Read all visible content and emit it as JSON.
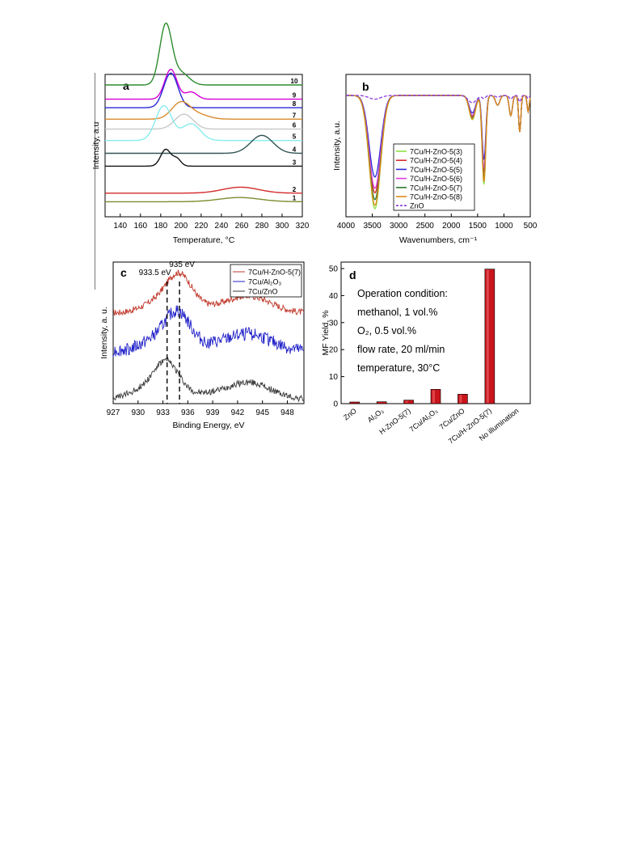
{
  "chart_data": [
    {
      "panel": "a",
      "type": "line",
      "xlabel": "Temperature, °C",
      "ylabel": "Intensity, a.u",
      "xlim": [
        125,
        320
      ],
      "xticks": [
        140,
        160,
        180,
        200,
        220,
        240,
        260,
        280,
        300,
        320
      ],
      "curve_labels": [
        "10",
        "9",
        "8",
        "7",
        "6",
        "5",
        "4",
        "3",
        "2",
        "1"
      ],
      "series": [
        {
          "name": "10",
          "color": "#2e8b2e",
          "baseline": 0.04,
          "peaks": [
            [
              185,
              6,
              1.0
            ],
            [
              200,
              8,
              0.2
            ]
          ]
        },
        {
          "name": "9",
          "color": "#d700d7",
          "baseline": 0.14,
          "peaks": [
            [
              190,
              6,
              0.5
            ],
            [
              210,
              6,
              0.12
            ]
          ]
        },
        {
          "name": "8",
          "color": "#2a2ad8",
          "baseline": 0.2,
          "peaks": [
            [
              190,
              7,
              0.58
            ]
          ]
        },
        {
          "name": "7",
          "color": "#d98a2b",
          "baseline": 0.28,
          "peaks": [
            [
              200,
              9,
              0.28
            ],
            [
              218,
              10,
              0.07
            ]
          ]
        },
        {
          "name": "6",
          "color": "#c8c8c8",
          "baseline": 0.35,
          "peaks": [
            [
              203,
              9,
              0.25
            ]
          ]
        },
        {
          "name": "5",
          "color": "#87ecef",
          "baseline": 0.43,
          "peaks": [
            [
              183,
              8,
              0.58
            ],
            [
              210,
              9,
              0.28
            ]
          ]
        },
        {
          "name": "4",
          "color": "#335555",
          "baseline": 0.52,
          "peaks": [
            [
              280,
              11,
              0.3
            ]
          ]
        },
        {
          "name": "3",
          "color": "#111111",
          "baseline": 0.61,
          "peaks": [
            [
              185,
              5,
              0.28
            ],
            [
              196,
              4,
              0.12
            ]
          ]
        },
        {
          "name": "2",
          "color": "#d42a2a",
          "baseline": 0.8,
          "peaks": [
            [
              259,
              18,
              0.1
            ]
          ]
        },
        {
          "name": "1",
          "color": "#7c8c2f",
          "baseline": 0.86,
          "peaks": [
            [
              258,
              20,
              0.07
            ]
          ]
        }
      ]
    },
    {
      "panel": "b",
      "type": "line",
      "xlabel": "Wavenumbers, cm⁻¹",
      "ylabel": "Intensity, a.u.",
      "xlim": [
        4000,
        500
      ],
      "xticks": [
        4000,
        3500,
        3000,
        2500,
        2000,
        1500,
        1000,
        500
      ],
      "series": [
        {
          "name": "7Cu/H-ZnO-5(3)",
          "color": "#8de046",
          "depth": 1.0
        },
        {
          "name": "7Cu/H-ZnO-5(4)",
          "color": "#d62b2b",
          "depth": 0.86
        },
        {
          "name": "7Cu/H-ZnO-5(5)",
          "color": "#2d2dda",
          "depth": 0.72
        },
        {
          "name": "7Cu/H-ZnO-5(6)",
          "color": "#df3ddf",
          "depth": 0.82
        },
        {
          "name": "7Cu/H-ZnO-5(7)",
          "color": "#2d7a2d",
          "depth": 0.92
        },
        {
          "name": "7Cu/H-ZnO-5(8)",
          "color": "#e08a1a",
          "depth": 0.97
        },
        {
          "name": "ZnO",
          "color": "#8a3adf",
          "depth": 0.18,
          "dashed": true
        }
      ]
    },
    {
      "panel": "c",
      "type": "line",
      "xlabel": "Binding Energy, eV",
      "ylabel": "Intensity, a. u.",
      "xlim": [
        927,
        950
      ],
      "xticks": [
        927,
        930,
        933,
        936,
        939,
        942,
        945,
        948
      ],
      "annotations": [
        "933.5 eV",
        "935 eV"
      ],
      "reference_lines": [
        933.5,
        935
      ],
      "series": [
        {
          "name": "7Cu/H-ZnO-5(7)",
          "color": "#c0392b",
          "peak": 935.0
        },
        {
          "name": "7Cu/Al₂O₃",
          "color": "#2323c9",
          "peak": 934.8
        },
        {
          "name": "7Cu/ZnO",
          "color": "#3a3a3a",
          "peak": 933.5
        }
      ]
    },
    {
      "panel": "d",
      "type": "bar",
      "ylabel": "MF Yield, %",
      "ylim": [
        0,
        50
      ],
      "yticks": [
        0,
        10,
        20,
        30,
        40,
        50
      ],
      "categories": [
        "ZnO",
        "Al₂O₃",
        "H-ZnO-5(7)",
        "7Cu/Al₂O₃",
        "7Cu/ZnO",
        "7Cu/H-ZnO-5(7)",
        "No illumination"
      ],
      "values": [
        0.6,
        0.7,
        1.3,
        5.3,
        3.5,
        49.8,
        0
      ],
      "bar_color": "#c8141a",
      "conditions": [
        "Operation condition:",
        "methanol, 1 vol.%",
        "O₂, 0.5 vol.%",
        "flow rate, 20 ml/min",
        "temperature, 30°C"
      ]
    }
  ]
}
